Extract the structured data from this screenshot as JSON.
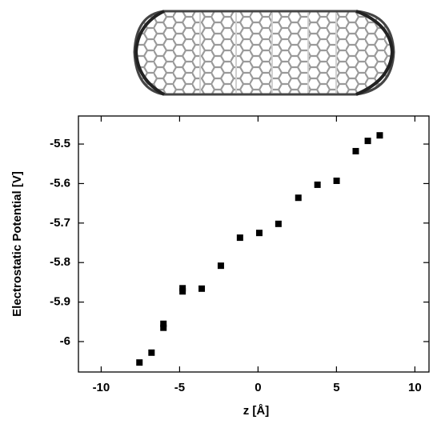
{
  "chart_data": {
    "type": "scatter",
    "x_label": "z [Å]",
    "y_label": "Electrostatic Potential [V]",
    "color": "#000000",
    "x": [
      -7.56,
      -6.79,
      -6.03,
      -6.03,
      -4.81,
      -4.81,
      -3.59,
      -2.37,
      -1.15,
      0.08,
      1.3,
      2.57,
      3.79,
      5.01,
      6.23,
      7.0,
      7.76
    ],
    "values": [
      -6.053,
      -6.028,
      -5.955,
      -5.965,
      -5.865,
      -5.873,
      -5.866,
      -5.808,
      -5.737,
      -5.725,
      -5.702,
      -5.636,
      -5.603,
      -5.593,
      -5.518,
      -5.492,
      -5.478
    ],
    "xlim": [
      -11.45,
      10.9
    ],
    "ylim": [
      -6.077,
      -5.429
    ],
    "xticks": [
      -10,
      -5,
      0,
      5,
      10
    ],
    "yticks": [
      -6,
      -5.9,
      -5.8,
      -5.7,
      -5.6,
      -5.5
    ]
  }
}
